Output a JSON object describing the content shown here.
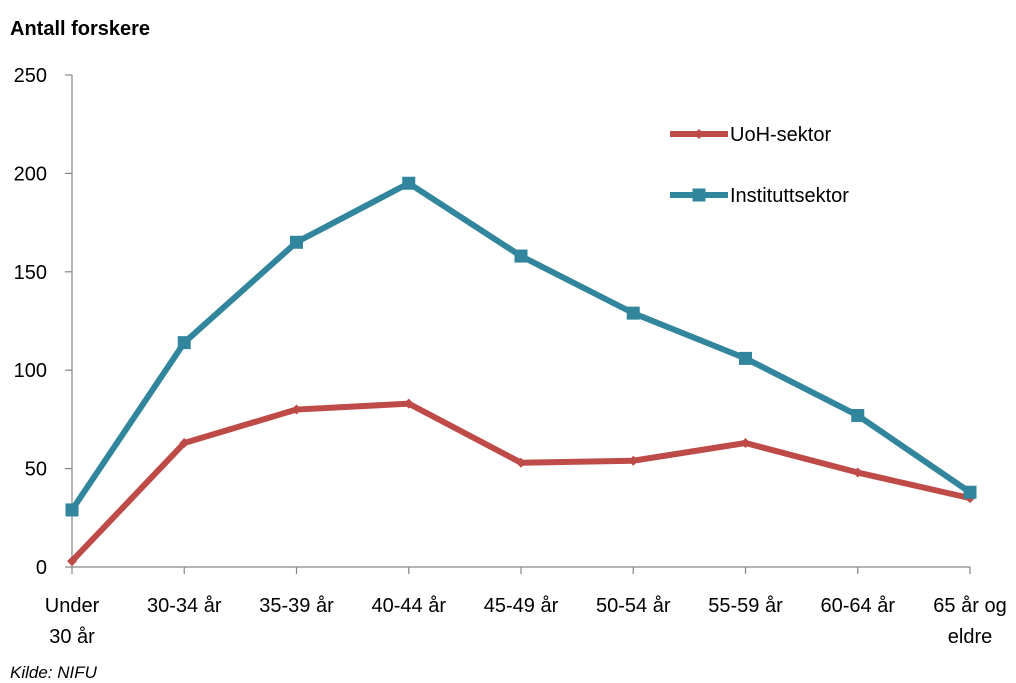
{
  "chart_data": {
    "type": "line",
    "title": "",
    "ylabel": "Antall forskere",
    "xlabel": "",
    "ylim": [
      0,
      250
    ],
    "yticks": [
      0,
      50,
      100,
      150,
      200,
      250
    ],
    "categories": [
      [
        "Under",
        "30 år"
      ],
      [
        "30-34 år"
      ],
      [
        "35-39 år"
      ],
      [
        "40-44 år"
      ],
      [
        "45-49 år"
      ],
      [
        "50-54 år"
      ],
      [
        "55-59 år"
      ],
      [
        "60-64 år"
      ],
      [
        "65 år og",
        "eldre"
      ]
    ],
    "series": [
      {
        "name": "UoH-sektor",
        "color": "#BE4B48",
        "marker": "diamond",
        "values": [
          3,
          63,
          80,
          83,
          53,
          54,
          63,
          48,
          35
        ]
      },
      {
        "name": "Instituttsektor",
        "color": "#31859C",
        "marker": "square",
        "values": [
          29,
          114,
          165,
          195,
          158,
          129,
          106,
          77,
          38
        ]
      }
    ],
    "grid": false,
    "legend_position": "top-right",
    "source": "Kilde: NIFU"
  }
}
